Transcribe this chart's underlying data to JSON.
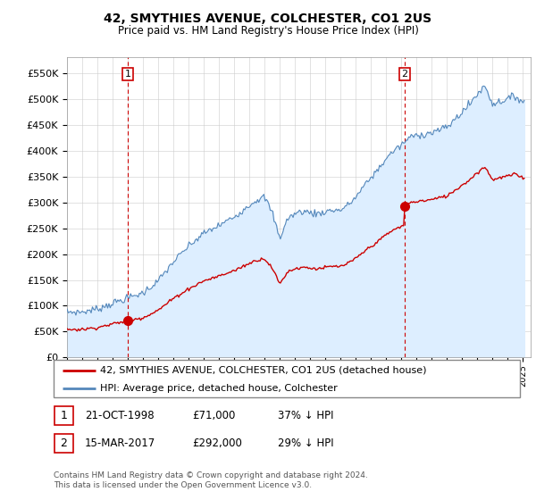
{
  "title": "42, SMYTHIES AVENUE, COLCHESTER, CO1 2US",
  "subtitle": "Price paid vs. HM Land Registry's House Price Index (HPI)",
  "price_paid_color": "#cc0000",
  "hpi_color": "#5588bb",
  "hpi_fill_color": "#ddeeff",
  "marker1_date": 1999.0,
  "marker1_price": 71000,
  "marker2_date": 2017.2,
  "marker2_price": 292000,
  "legend_label1": "42, SMYTHIES AVENUE, COLCHESTER, CO1 2US (detached house)",
  "legend_label2": "HPI: Average price, detached house, Colchester",
  "footnote": "Contains HM Land Registry data © Crown copyright and database right 2024.\nThis data is licensed under the Open Government Licence v3.0.",
  "background_color": "#ffffff",
  "grid_color": "#cccccc",
  "ylim": [
    0,
    580000
  ],
  "yticks": [
    0,
    50000,
    100000,
    150000,
    200000,
    250000,
    300000,
    350000,
    400000,
    450000,
    500000,
    550000
  ],
  "xlim_start": 1995.0,
  "xlim_end": 2025.5
}
